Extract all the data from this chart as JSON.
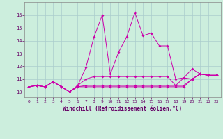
{
  "xlabel": "Windchill (Refroidissement éolien,°C)",
  "bg_color": "#cceedd",
  "grid_color": "#aacccc",
  "line_color": "#cc00aa",
  "xlim": [
    -0.5,
    23.5
  ],
  "ylim": [
    9.6,
    17.0
  ],
  "xticks": [
    0,
    1,
    2,
    3,
    4,
    5,
    6,
    7,
    8,
    9,
    10,
    11,
    12,
    13,
    14,
    15,
    16,
    17,
    18,
    19,
    20,
    21,
    22,
    23
  ],
  "yticks": [
    10,
    11,
    12,
    13,
    14,
    15,
    16
  ],
  "series": [
    [
      10.4,
      10.5,
      10.4,
      10.8,
      10.4,
      10.0,
      10.5,
      11.9,
      14.3,
      16.0,
      11.4,
      13.1,
      14.3,
      16.2,
      14.4,
      14.6,
      13.6,
      13.6,
      11.0,
      11.1,
      11.8,
      11.4,
      11.3,
      11.3
    ],
    [
      10.4,
      10.5,
      10.4,
      10.8,
      10.4,
      10.0,
      10.5,
      11.0,
      11.2,
      11.2,
      11.2,
      11.2,
      11.2,
      11.2,
      11.2,
      11.2,
      11.2,
      11.2,
      10.5,
      11.1,
      11.0,
      11.4,
      11.3,
      11.3
    ],
    [
      10.4,
      10.5,
      10.4,
      10.8,
      10.4,
      10.0,
      10.4,
      10.5,
      10.5,
      10.5,
      10.5,
      10.5,
      10.5,
      10.5,
      10.5,
      10.5,
      10.5,
      10.5,
      10.5,
      10.5,
      11.0,
      11.4,
      11.3,
      11.3
    ],
    [
      10.4,
      10.5,
      10.4,
      10.8,
      10.4,
      10.0,
      10.4,
      10.4,
      10.4,
      10.4,
      10.4,
      10.4,
      10.4,
      10.4,
      10.4,
      10.4,
      10.4,
      10.4,
      10.4,
      10.4,
      11.0,
      11.4,
      11.3,
      11.3
    ]
  ]
}
